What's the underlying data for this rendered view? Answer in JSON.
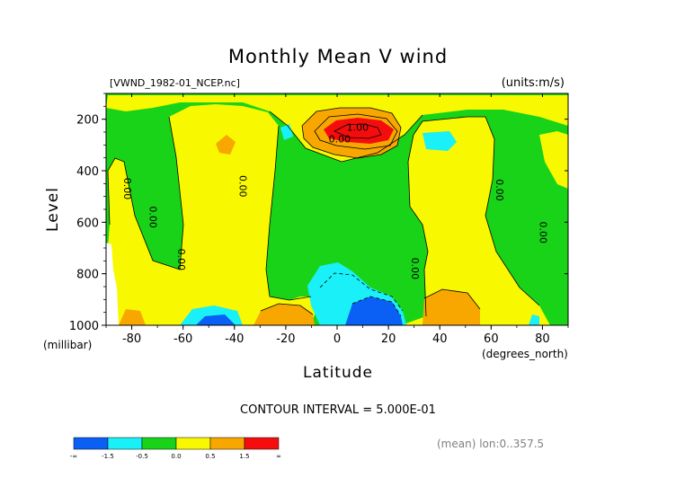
{
  "chart_data": {
    "type": "heatmap",
    "title": "Monthly Mean V wind",
    "file_label": "[VWND_1982-01_NCEP.nc]",
    "units_label": "(units:m/s)",
    "xlabel": "Latitude",
    "x_units": "(degrees_north)",
    "ylabel": "Level",
    "y_units": "(millibar)",
    "xlim": [
      -90,
      90
    ],
    "ylim": [
      1000,
      100
    ],
    "x_ticks": [
      -80,
      -60,
      -40,
      -20,
      0,
      20,
      40,
      60,
      80
    ],
    "y_ticks": [
      200,
      400,
      600,
      800,
      1000
    ],
    "contour_interval_text": "CONTOUR INTERVAL = 5.000E-01",
    "footer_text": "(mean) lon:0..357.5",
    "contour_labels": [
      {
        "text": "1.00",
        "x": 8,
        "y": 245
      },
      {
        "text": "0.00",
        "x": 1,
        "y": 290
      },
      {
        "text": "0.00",
        "x": -83,
        "y": 470
      },
      {
        "text": "0.00",
        "x": -73,
        "y": 580
      },
      {
        "text": "0.00",
        "x": -38,
        "y": 460
      },
      {
        "text": "0.00",
        "x": -62,
        "y": 745
      },
      {
        "text": "0.00",
        "x": 29,
        "y": 780
      },
      {
        "text": "0.00",
        "x": 62,
        "y": 475
      },
      {
        "text": "0.00",
        "x": 79,
        "y": 640
      }
    ],
    "colorbar": {
      "colors": [
        "#0a5ff5",
        "#19f0f7",
        "#19d319",
        "#f8f800",
        "#f7a700",
        "#f50d0d"
      ],
      "tick_labels": [
        "-∞",
        "-1.5",
        "-0.5",
        "0.0",
        "0.5",
        "1.5",
        "∞"
      ]
    }
  }
}
